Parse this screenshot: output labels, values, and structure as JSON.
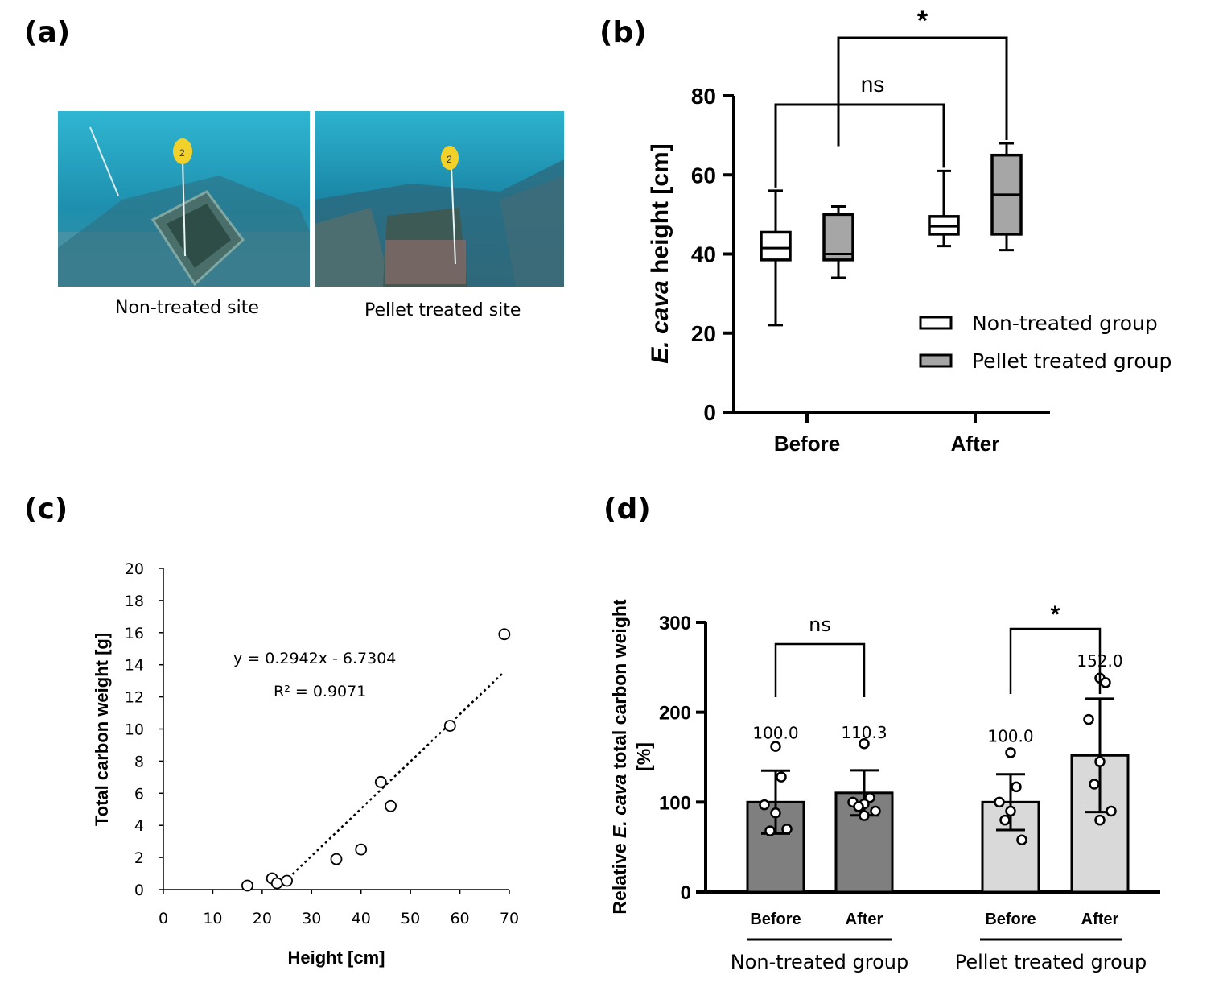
{
  "panels": {
    "a": {
      "label": "(a)",
      "photos": [
        {
          "caption": "Non-treated site",
          "marker_tag": "2"
        },
        {
          "caption": "Pellet treated site",
          "marker_tag": "2"
        }
      ]
    },
    "b": {
      "label": "(b)"
    },
    "c": {
      "label": "(c)"
    },
    "d": {
      "label": "(d)"
    }
  },
  "chart_data": [
    {
      "panel": "b",
      "type": "box",
      "ylabel_italic": "E. cava",
      "ylabel_rest": " height [cm]",
      "ylim": [
        0,
        80
      ],
      "yticks": [
        0,
        20,
        40,
        60,
        80
      ],
      "categories": [
        "Before",
        "After"
      ],
      "series": [
        {
          "name": "Non-treated group",
          "color": "#ffffff",
          "boxes": [
            {
              "min": 22,
              "q1": 38.5,
              "median": 41.5,
              "q3": 45.5,
              "max": 56
            },
            {
              "min": 42,
              "q1": 45,
              "median": 47,
              "q3": 49.5,
              "max": 61
            }
          ]
        },
        {
          "name": "Pellet treated group",
          "color": "#a6a6a6",
          "boxes": [
            {
              "min": 34,
              "q1": 38.5,
              "median": 40,
              "q3": 50,
              "max": 52
            },
            {
              "min": 41,
              "q1": 45,
              "median": 55,
              "q3": 65,
              "max": 68
            }
          ]
        }
      ],
      "significance": [
        {
          "label": "ns",
          "from": "Non-treated group / Before",
          "to": "Non-treated group / After"
        },
        {
          "label": "*",
          "from": "Pellet treated group / Before",
          "to": "Pellet treated group / After"
        }
      ],
      "legend_position": "bottom-right"
    },
    {
      "panel": "c",
      "type": "scatter",
      "xlabel": "Height [cm]",
      "ylabel": "Total carbon weight [g]",
      "xlim": [
        0,
        70
      ],
      "ylim": [
        0,
        20
      ],
      "xticks": [
        0,
        10,
        20,
        30,
        40,
        50,
        60,
        70
      ],
      "yticks": [
        0,
        2,
        4,
        6,
        8,
        10,
        12,
        14,
        16,
        18,
        20
      ],
      "points": [
        {
          "x": 17,
          "y": 0.25
        },
        {
          "x": 22,
          "y": 0.7
        },
        {
          "x": 23,
          "y": 0.4
        },
        {
          "x": 25,
          "y": 0.55
        },
        {
          "x": 35,
          "y": 1.9
        },
        {
          "x": 40,
          "y": 2.5
        },
        {
          "x": 44,
          "y": 6.7
        },
        {
          "x": 46,
          "y": 5.2
        },
        {
          "x": 58,
          "y": 10.2
        },
        {
          "x": 69,
          "y": 15.9
        }
      ],
      "trendline": {
        "slope": 0.2942,
        "intercept": -6.7304,
        "x_from": 24.5,
        "x_to": 69
      },
      "equation": "y = 0.2942x - 6.7304",
      "r_squared": "R² = 0.9071"
    },
    {
      "panel": "d",
      "type": "bar",
      "ylabel_line1_prefix": "Relative ",
      "ylabel_line1_italic": "E. cava",
      "ylabel_line1_suffix": " total carbon weight",
      "ylabel_line2": "[%]",
      "ylim": [
        0,
        300
      ],
      "yticks": [
        0,
        100,
        200,
        300
      ],
      "groups": [
        "Non-treated group",
        "Pellet treated group"
      ],
      "categories": [
        "Before",
        "After",
        "Before",
        "After"
      ],
      "values": [
        100.0,
        110.3,
        100.0,
        152.0
      ],
      "value_labels": [
        "100.0",
        "110.3",
        "100.0",
        "152.0"
      ],
      "sd": [
        35,
        25,
        31,
        63
      ],
      "colors": [
        "#7f7f7f",
        "#7f7f7f",
        "#d9d9d9",
        "#d9d9d9"
      ],
      "points": [
        [
          162,
          128,
          97,
          88,
          68,
          70
        ],
        [
          165,
          105,
          100,
          98,
          95,
          90,
          85
        ],
        [
          155,
          117,
          100,
          90,
          80,
          58
        ],
        [
          238,
          233,
          192,
          145,
          120,
          90,
          80
        ]
      ],
      "significance": [
        {
          "label": "ns",
          "group": "Non-treated group"
        },
        {
          "label": "*",
          "group": "Pellet treated group"
        }
      ]
    }
  ]
}
